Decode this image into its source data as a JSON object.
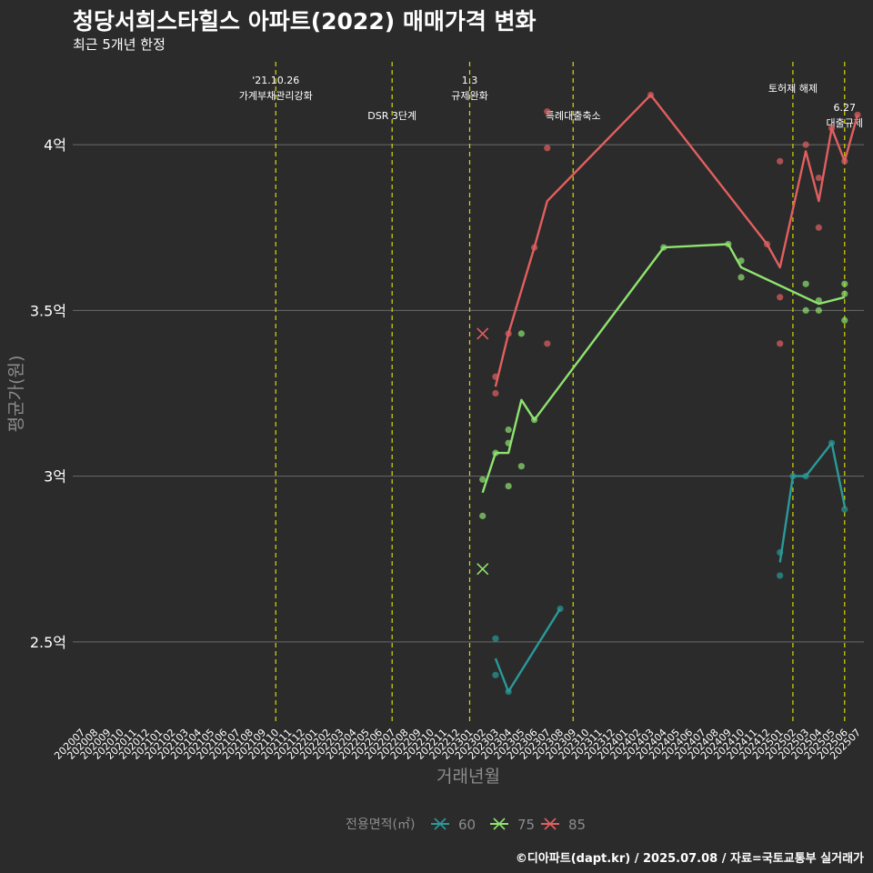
{
  "header": {
    "title": "청당서희스타힐스 아파트(2022) 매매가격 변화",
    "subtitle": "최근 5개년 한정"
  },
  "footer": {
    "caption": "©디아파트(dapt.kr) / 2025.07.08 / 자료=국토교통부 실거래가"
  },
  "colors": {
    "background": "#2b2b2c",
    "grid": "#6a6a6a",
    "event_line": "#d8d800",
    "text": "#ffffff",
    "axis_title": "#8c8c8c",
    "s60": "#2a9a98",
    "s75": "#8fe36f",
    "s85": "#e25f5f"
  },
  "chart_data": {
    "type": "line",
    "xlabel": "거래년월",
    "ylabel": "평균가(원)",
    "x_ticks": [
      "202007",
      "202008",
      "202009",
      "202010",
      "202011",
      "202012",
      "202101",
      "202102",
      "202103",
      "202104",
      "202105",
      "202106",
      "202107",
      "202108",
      "202109",
      "202110",
      "202111",
      "202112",
      "202201",
      "202202",
      "202203",
      "202204",
      "202205",
      "202206",
      "202207",
      "202208",
      "202209",
      "202210",
      "202211",
      "202212",
      "202301",
      "202302",
      "202303",
      "202304",
      "202305",
      "202306",
      "202307",
      "202308",
      "202309",
      "202310",
      "202311",
      "202312",
      "202401",
      "202402",
      "202403",
      "202404",
      "202405",
      "202406",
      "202407",
      "202408",
      "202409",
      "202410",
      "202411",
      "202412",
      "202501",
      "202502",
      "202503",
      "202504",
      "202505",
      "202506",
      "202507"
    ],
    "y_ticks": [
      {
        "value": 2.5,
        "label": "2.5억"
      },
      {
        "value": 3.0,
        "label": "3억"
      },
      {
        "value": 3.5,
        "label": "3.5억"
      },
      {
        "value": 4.0,
        "label": "4억"
      }
    ],
    "ylim": [
      2.25,
      4.25
    ],
    "y_unit": "억",
    "grid": true,
    "legend": {
      "title": "전용면적(㎡)",
      "position": "bottom",
      "items": [
        "60",
        "75",
        "85"
      ]
    },
    "events": [
      {
        "month": "202110",
        "label": "'21.10.26\n가계부채관리강화",
        "row": 0
      },
      {
        "month": "202207",
        "label": "DSR 3단계",
        "row": 2
      },
      {
        "month": "202301",
        "label": "1.3\n규제완화",
        "row": 0
      },
      {
        "month": "202309",
        "label": "특례대출축소",
        "row": 2
      },
      {
        "month": "202502",
        "label": "토허제 해제",
        "row": 1
      },
      {
        "month": "202506",
        "label": "6.27\n대출규제",
        "row": 1.5
      }
    ],
    "series": [
      {
        "name": "60",
        "color_key": "s60",
        "line": [
          [
            "202303",
            2.45
          ],
          [
            "202304",
            2.35
          ],
          [
            "202308",
            2.6
          ]
        ],
        "points": [
          [
            "202303",
            2.51
          ],
          [
            "202303",
            2.4
          ],
          [
            "202304",
            2.35
          ],
          [
            "202308",
            2.6
          ],
          [
            "202501",
            2.77
          ],
          [
            "202501",
            2.7
          ],
          [
            "202502",
            3.0
          ],
          [
            "202503",
            3.0
          ],
          [
            "202505",
            3.1
          ],
          [
            "202506",
            2.9
          ]
        ],
        "line2": [
          [
            "202501",
            2.74
          ],
          [
            "202502",
            3.0
          ],
          [
            "202503",
            3.0
          ],
          [
            "202505",
            3.1
          ],
          [
            "202506",
            2.91
          ]
        ],
        "cross": null
      },
      {
        "name": "75",
        "color_key": "s75",
        "line": [
          [
            "202302",
            2.95
          ],
          [
            "202303",
            3.07
          ],
          [
            "202304",
            3.07
          ],
          [
            "202305",
            3.23
          ],
          [
            "202306",
            3.17
          ],
          [
            "202404",
            3.69
          ],
          [
            "202409",
            3.7
          ],
          [
            "202410",
            3.63
          ],
          [
            "202504",
            3.52
          ],
          [
            "202506",
            3.54
          ]
        ],
        "points": [
          [
            "202302",
            2.99
          ],
          [
            "202302",
            2.88
          ],
          [
            "202303",
            3.07
          ],
          [
            "202304",
            3.14
          ],
          [
            "202304",
            3.1
          ],
          [
            "202304",
            2.97
          ],
          [
            "202305",
            3.43
          ],
          [
            "202305",
            3.03
          ],
          [
            "202306",
            3.17
          ],
          [
            "202404",
            3.69
          ],
          [
            "202409",
            3.7
          ],
          [
            "202410",
            3.65
          ],
          [
            "202410",
            3.6
          ],
          [
            "202503",
            3.58
          ],
          [
            "202503",
            3.5
          ],
          [
            "202504",
            3.53
          ],
          [
            "202504",
            3.5
          ],
          [
            "202506",
            3.58
          ],
          [
            "202506",
            3.55
          ],
          [
            "202506",
            3.47
          ]
        ],
        "line2": null,
        "cross": [
          "202302",
          2.72
        ]
      },
      {
        "name": "85",
        "color_key": "s85",
        "line": [
          [
            "202303",
            3.27
          ],
          [
            "202304",
            3.43
          ],
          [
            "202306",
            3.69
          ],
          [
            "202307",
            3.83
          ],
          [
            "202403",
            4.15
          ],
          [
            "202412",
            3.7
          ],
          [
            "202501",
            3.63
          ],
          [
            "202503",
            3.98
          ],
          [
            "202504",
            3.83
          ],
          [
            "202505",
            4.05
          ],
          [
            "202506",
            3.95
          ],
          [
            "202507",
            4.09
          ]
        ],
        "points": [
          [
            "202303",
            3.3
          ],
          [
            "202303",
            3.25
          ],
          [
            "202304",
            3.43
          ],
          [
            "202306",
            3.69
          ],
          [
            "202307",
            4.1
          ],
          [
            "202307",
            3.99
          ],
          [
            "202307",
            3.4
          ],
          [
            "202403",
            4.15
          ],
          [
            "202412",
            3.7
          ],
          [
            "202501",
            3.95
          ],
          [
            "202501",
            3.54
          ],
          [
            "202501",
            3.4
          ],
          [
            "202503",
            4.0
          ],
          [
            "202504",
            3.9
          ],
          [
            "202504",
            3.75
          ],
          [
            "202505",
            4.05
          ],
          [
            "202506",
            3.95
          ],
          [
            "202507",
            4.09
          ]
        ],
        "line2": null,
        "cross": [
          "202302",
          3.43
        ]
      }
    ]
  }
}
